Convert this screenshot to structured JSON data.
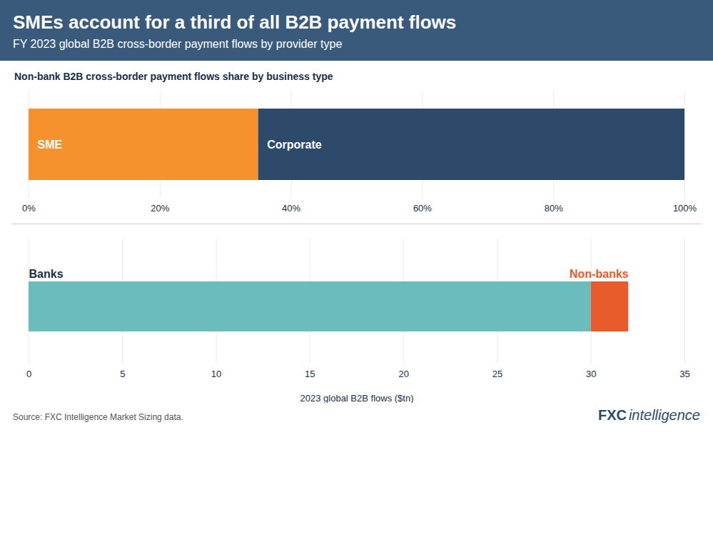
{
  "title": "SMEs account for a third of all B2B payment flows",
  "subtitle": "FY 2023 global B2B cross-border payment flows by provider type",
  "annotations": [
    "Source: FXC Intelligence Market Sizing data.",
    "FXC",
    "intelligence"
  ],
  "chart_data": [
    {
      "type": "bar",
      "orientation": "horizontal",
      "stacked": true,
      "title": "Non-bank B2B cross-border payment flows share by business type",
      "categories": [
        null
      ],
      "series": [
        {
          "name": "SME",
          "color": "#f5922e",
          "values": [
            35
          ]
        },
        {
          "name": "Corporate",
          "color": "#2d4a6b",
          "values": [
            65
          ]
        }
      ],
      "xlim": [
        0,
        100
      ],
      "xticks": [
        {
          "value": 0,
          "label": "0%"
        },
        {
          "value": 20,
          "label": "20%"
        },
        {
          "value": 40,
          "label": "40%"
        },
        {
          "value": 60,
          "label": "60%"
        },
        {
          "value": 80,
          "label": "80%"
        },
        {
          "value": 100,
          "label": "100%"
        }
      ],
      "grid": true
    },
    {
      "type": "bar",
      "orientation": "horizontal",
      "stacked": true,
      "xlabel": "2023 global B2B flows ($tn)",
      "categories": [
        null
      ],
      "series": [
        {
          "name": "Banks",
          "color": "#6bbcbd",
          "values": [
            30
          ]
        },
        {
          "name": "Non-banks",
          "color": "#e85b2a",
          "values": [
            2
          ]
        }
      ],
      "xlim": [
        0,
        35
      ],
      "xticks": [
        0,
        5,
        10,
        15,
        20,
        25,
        30,
        35
      ],
      "grid": true
    }
  ]
}
